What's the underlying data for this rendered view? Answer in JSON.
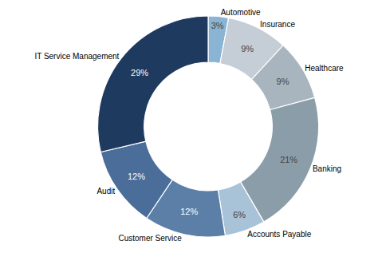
{
  "chart_data": {
    "type": "donut",
    "categories": [
      "Automotive",
      "Insurance",
      "Healthcare",
      "Banking",
      "Accounts Payable",
      "Customer Service",
      "Audit",
      "IT Service Management"
    ],
    "values": [
      3,
      9,
      9,
      21,
      6,
      12,
      12,
      29
    ],
    "value_labels": [
      "3%",
      "9%",
      "9%",
      "21%",
      "6%",
      "12%",
      "12%",
      "29%"
    ],
    "colors": [
      "#8ab4d4",
      "#c5cdd6",
      "#a8b4be",
      "#8c9daa",
      "#a8c2d8",
      "#5c7fa8",
      "#4a6d9a",
      "#1e3a5f"
    ],
    "data_labels": true
  }
}
